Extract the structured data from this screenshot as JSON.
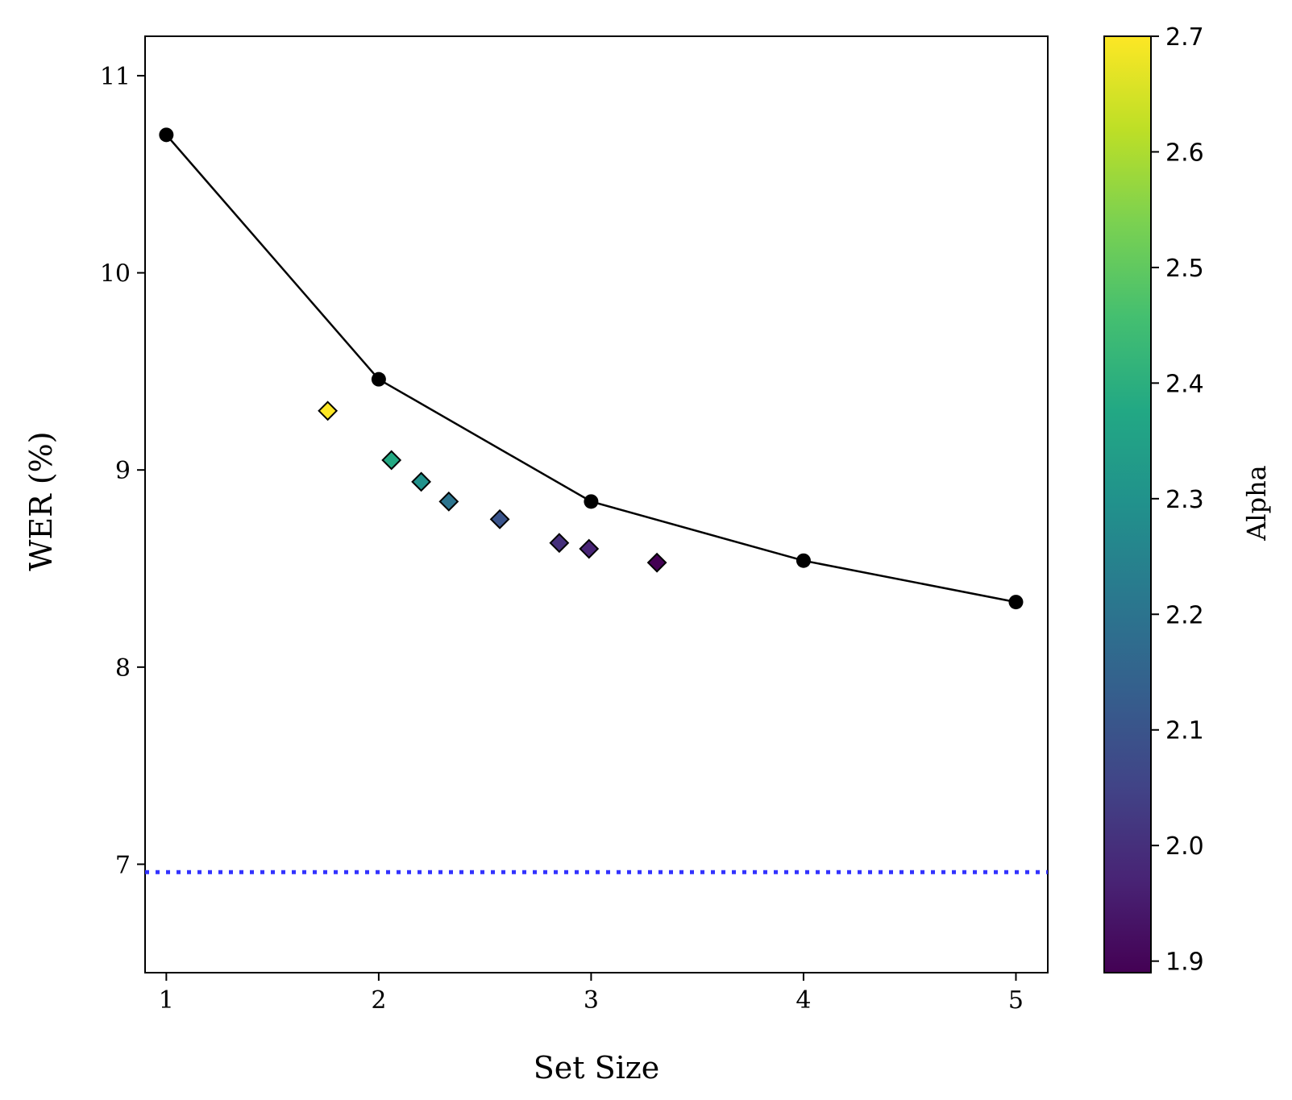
{
  "chart_data": {
    "type": "scatter",
    "xlabel": "Set Size",
    "ylabel": "WER (%)",
    "xlim": [
      0.9,
      5.15
    ],
    "ylim": [
      6.45,
      11.2
    ],
    "xticks": [
      1,
      2,
      3,
      4,
      5
    ],
    "yticks": [
      7,
      8,
      9,
      10,
      11
    ],
    "grid": false,
    "series": [
      {
        "kind": "line-with-markers",
        "color": "#000000",
        "x": [
          1,
          2,
          3,
          4,
          5
        ],
        "y": [
          10.7,
          9.46,
          8.84,
          8.54,
          8.33
        ]
      },
      {
        "kind": "scatter-diamond",
        "colormap": "viridis",
        "points": [
          {
            "x": 1.76,
            "y": 9.3,
            "alpha": 2.7
          },
          {
            "x": 2.06,
            "y": 9.05,
            "alpha": 2.38
          },
          {
            "x": 2.2,
            "y": 8.94,
            "alpha": 2.3
          },
          {
            "x": 2.33,
            "y": 8.84,
            "alpha": 2.2
          },
          {
            "x": 2.57,
            "y": 8.75,
            "alpha": 2.1
          },
          {
            "x": 2.85,
            "y": 8.63,
            "alpha": 2.0
          },
          {
            "x": 2.99,
            "y": 8.6,
            "alpha": 1.97
          },
          {
            "x": 3.31,
            "y": 8.53,
            "alpha": 1.89
          }
        ]
      },
      {
        "kind": "hline-dotted",
        "color": "#3333ff",
        "y": 6.96
      }
    ],
    "colorbar": {
      "label": "Alpha",
      "range": [
        1.89,
        2.7
      ],
      "ticks": [
        "1.9",
        "2.0",
        "2.1",
        "2.2",
        "2.3",
        "2.4",
        "2.5",
        "2.6",
        "2.7"
      ],
      "colormap": "viridis"
    }
  }
}
